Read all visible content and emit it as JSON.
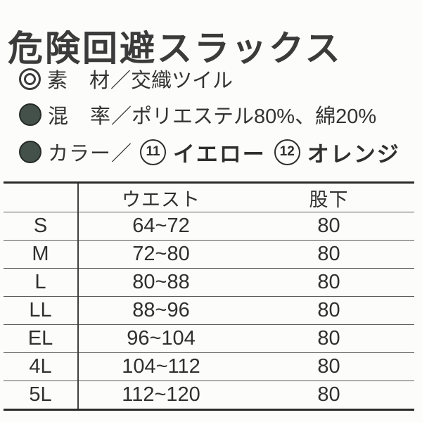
{
  "page": {
    "title": "危険回避スラックス"
  },
  "specs": {
    "material": {
      "icon": "double-circle",
      "label": "素　材",
      "separator": "／",
      "value": "交織ツイル"
    },
    "blend": {
      "icon": "filled-circle",
      "label": "混　率",
      "separator": "／",
      "value": "ポリエステル80%、綿20%"
    },
    "color": {
      "icon": "filled-circle",
      "label": "カラー",
      "separator": "／",
      "options": [
        {
          "number": "11",
          "name": "イエロー"
        },
        {
          "number": "12",
          "name": "オレンジ"
        }
      ]
    }
  },
  "size_table": {
    "headers": {
      "size": "",
      "waist": "ウエスト",
      "inseam": "股下"
    },
    "rows": [
      {
        "size": "S",
        "waist": "64~72",
        "inseam": "80"
      },
      {
        "size": "M",
        "waist": "72~80",
        "inseam": "80"
      },
      {
        "size": "L",
        "waist": "80~88",
        "inseam": "80"
      },
      {
        "size": "LL",
        "waist": "88~96",
        "inseam": "80"
      },
      {
        "size": "EL",
        "waist": "96~104",
        "inseam": "80"
      },
      {
        "size": "4L",
        "waist": "104~112",
        "inseam": "80"
      },
      {
        "size": "5L",
        "waist": "112~120",
        "inseam": "80"
      }
    ]
  },
  "colors": {
    "background": "#fcfcfa",
    "text": "#333333",
    "bullet_fill": "#44514a",
    "table_thin_line": "#5c5c5c",
    "table_thick_border": "#2b2b2b"
  }
}
